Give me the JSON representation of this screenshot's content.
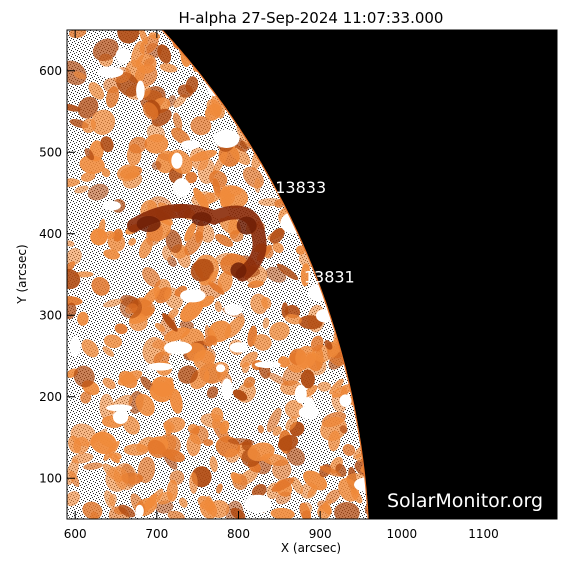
{
  "plot": {
    "title": "H-alpha 27-Sep-2024 11:07:33.000",
    "xlabel": "X (arcsec)",
    "ylabel": "Y (arcsec)",
    "xlim": [
      590,
      1190
    ],
    "ylim": [
      50,
      650
    ],
    "xticks": [
      600,
      700,
      800,
      900,
      1000,
      1100
    ],
    "yticks": [
      100,
      200,
      300,
      400,
      500,
      600
    ],
    "limb_radius_arcsec": 960
  },
  "regions": [
    {
      "label": "13833",
      "x": 845,
      "y": 450
    },
    {
      "label": "13831",
      "x": 880,
      "y": 340
    }
  ],
  "watermark": "SolarMonitor.org",
  "colors": {
    "background": "#ffffff",
    "space": "#000000",
    "disk_light": "#f08a3a",
    "disk_dark": "#b04a10",
    "sunspot": "#8a2a08",
    "annotation": "#ffffff",
    "axis": "#000000"
  }
}
